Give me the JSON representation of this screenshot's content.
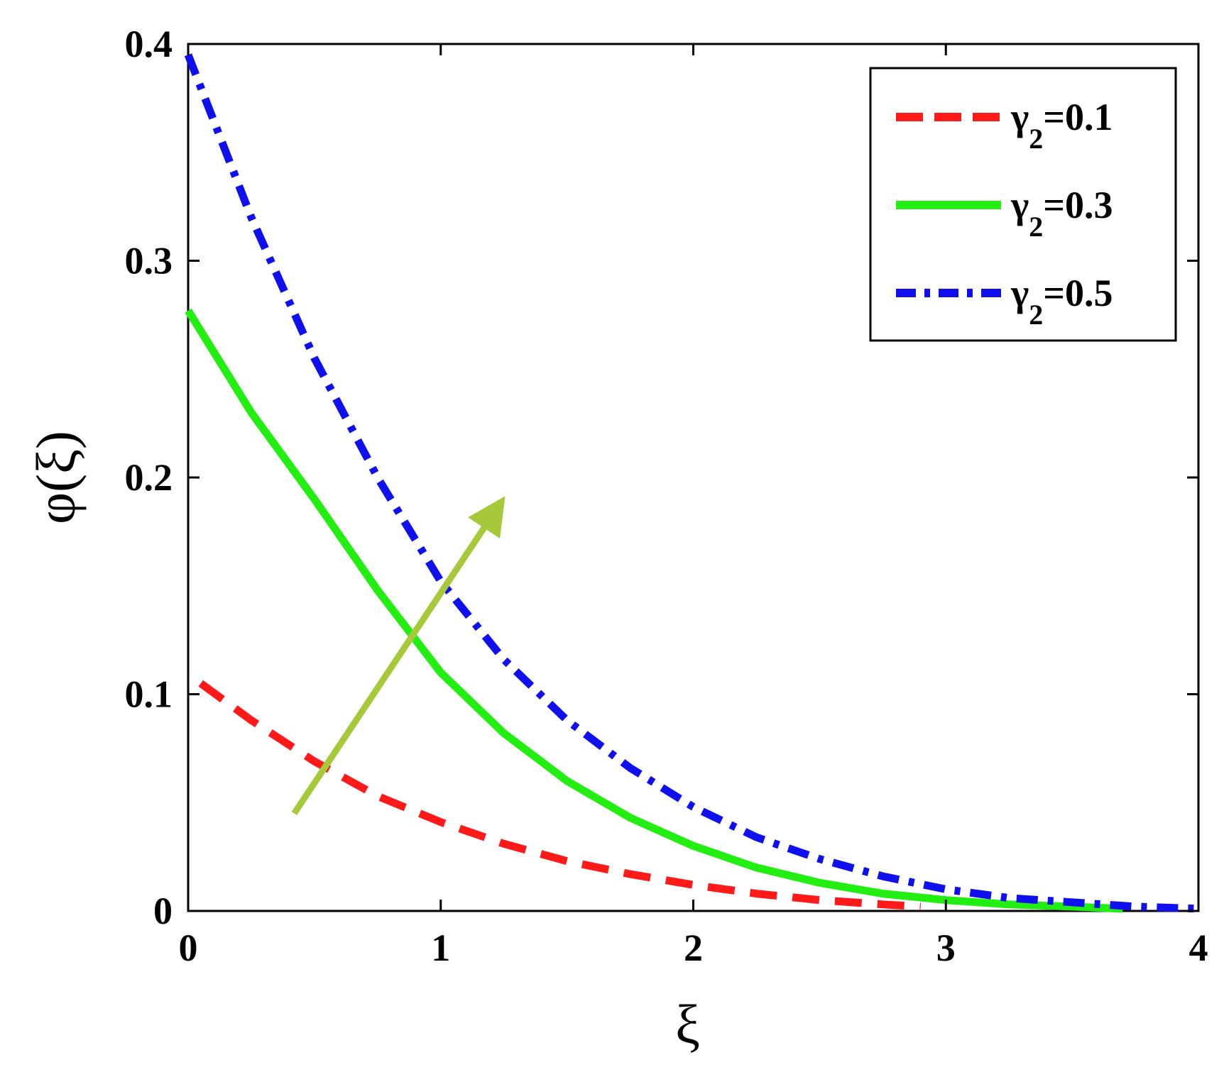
{
  "chart_data": {
    "type": "line",
    "title": "",
    "xlabel": "ξ",
    "ylabel": "φ(ξ)",
    "xlim": [
      0,
      4
    ],
    "ylim": [
      0,
      0.4
    ],
    "xticks": [
      0,
      1,
      2,
      3,
      4
    ],
    "yticks": [
      0,
      0.1,
      0.2,
      0.3,
      0.4
    ],
    "xtick_labels": [
      "0",
      "1",
      "2",
      "3",
      "4"
    ],
    "ytick_labels": [
      "0",
      "0.1",
      "0.2",
      "0.3",
      "0.4"
    ],
    "grid": false,
    "legend_position": "top-right",
    "series": [
      {
        "name": "γ2=0.1",
        "legend_symbol": "γ",
        "legend_subscript": "2",
        "legend_value": "=0.1",
        "color": "#ff1a1a",
        "style": "dashed",
        "x": [
          0.05,
          0.25,
          0.5,
          0.75,
          1.0,
          1.25,
          1.5,
          1.75,
          2.0,
          2.25,
          2.5,
          2.75,
          2.9
        ],
        "y": [
          0.105,
          0.088,
          0.069,
          0.053,
          0.041,
          0.031,
          0.023,
          0.017,
          0.012,
          0.008,
          0.005,
          0.003,
          0.002
        ]
      },
      {
        "name": "γ2=0.3",
        "legend_symbol": "γ",
        "legend_subscript": "2",
        "legend_value": "=0.3",
        "color": "#22ee11",
        "style": "solid",
        "x": [
          0.0,
          0.25,
          0.5,
          0.75,
          1.0,
          1.25,
          1.5,
          1.75,
          2.0,
          2.25,
          2.5,
          2.75,
          3.0,
          3.25,
          3.5,
          3.7
        ],
        "y": [
          0.277,
          0.23,
          0.19,
          0.148,
          0.11,
          0.082,
          0.06,
          0.043,
          0.03,
          0.02,
          0.013,
          0.008,
          0.005,
          0.003,
          0.002,
          0.001
        ]
      },
      {
        "name": "γ2=0.5",
        "legend_symbol": "γ",
        "legend_subscript": "2",
        "legend_value": "=0.5",
        "color": "#1010ee",
        "style": "dash-dot",
        "x": [
          0.0,
          0.25,
          0.5,
          0.75,
          1.0,
          1.25,
          1.5,
          1.75,
          2.0,
          2.25,
          2.5,
          2.75,
          3.0,
          3.25,
          3.5,
          3.75,
          4.0
        ],
        "y": [
          0.395,
          0.32,
          0.255,
          0.2,
          0.152,
          0.116,
          0.088,
          0.066,
          0.048,
          0.034,
          0.024,
          0.016,
          0.01,
          0.006,
          0.004,
          0.002,
          0.001
        ]
      }
    ],
    "annotations": [
      {
        "type": "arrow",
        "color": "#a6c93a",
        "from": [
          0.42,
          0.045
        ],
        "to": [
          1.23,
          0.187
        ]
      }
    ]
  }
}
